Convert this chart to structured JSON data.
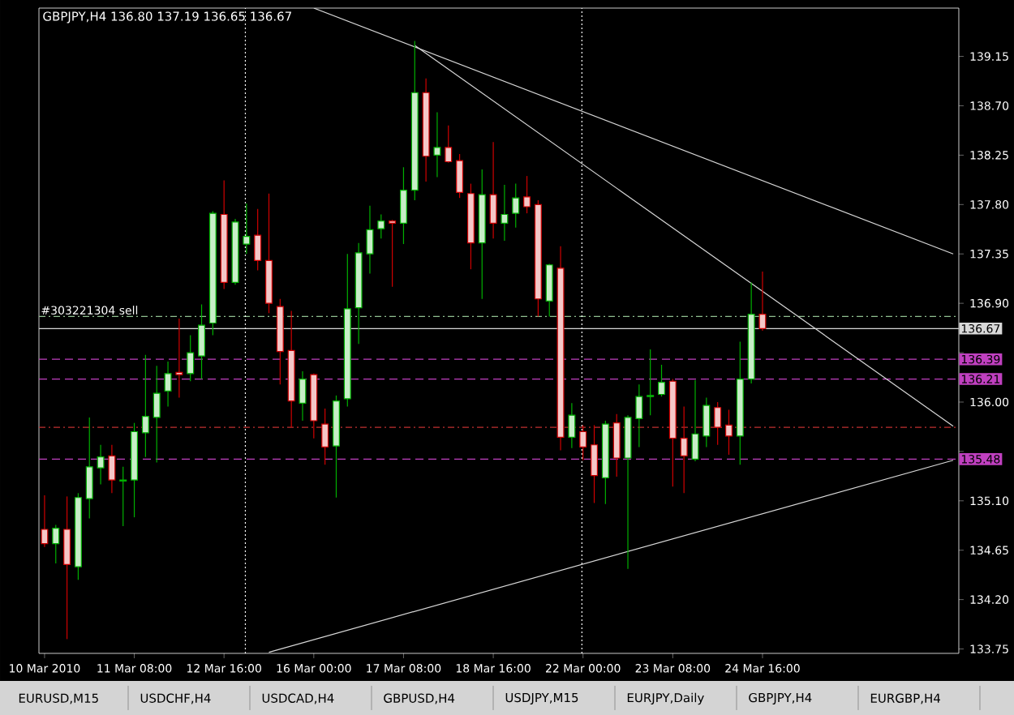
{
  "chart_data": {
    "type": "candlestick",
    "title": "GBPJPY,H4  136.80 137.19 136.65 136.67",
    "categories": [
      "10 Mar 2010",
      null,
      null,
      null,
      null,
      null,
      null,
      null,
      "11 Mar 08:00",
      null,
      null,
      null,
      null,
      null,
      null,
      null,
      "12 Mar 16:00",
      null,
      null,
      null,
      null,
      null,
      null,
      null,
      "16 Mar 00:00",
      null,
      null,
      null,
      null,
      null,
      null,
      null,
      "17 Mar 08:00",
      null,
      null,
      null,
      null,
      null,
      null,
      null,
      "18 Mar 16:00",
      null,
      null,
      null,
      null,
      null,
      null,
      null,
      "22 Mar 00:00",
      null,
      null,
      null,
      null,
      null,
      null,
      null,
      "23 Mar 08:00",
      null,
      null,
      null,
      null,
      null,
      null,
      null,
      "24 Mar 16:00",
      null,
      null,
      null,
      null,
      null,
      null,
      null,
      null,
      null,
      null,
      null,
      null,
      null,
      null,
      null,
      null,
      null
    ],
    "ohlc": [
      [
        134.84,
        135.15,
        134.68,
        134.71
      ],
      [
        134.71,
        134.88,
        134.53,
        134.85
      ],
      [
        134.84,
        135.14,
        133.84,
        134.52
      ],
      [
        134.5,
        135.17,
        134.38,
        135.13
      ],
      [
        135.12,
        135.86,
        134.94,
        135.41
      ],
      [
        135.4,
        135.61,
        135.25,
        135.5
      ],
      [
        135.51,
        135.61,
        135.17,
        135.29
      ],
      [
        135.28,
        135.41,
        134.87,
        135.29
      ],
      [
        135.29,
        135.81,
        134.95,
        135.73
      ],
      [
        135.72,
        136.43,
        135.5,
        135.87
      ],
      [
        135.86,
        136.33,
        135.45,
        136.08
      ],
      [
        136.1,
        136.37,
        135.96,
        136.26
      ],
      [
        136.27,
        136.76,
        136.04,
        136.25
      ],
      [
        136.26,
        136.61,
        136.19,
        136.45
      ],
      [
        136.42,
        136.89,
        136.21,
        136.7
      ],
      [
        136.72,
        137.74,
        136.61,
        137.72
      ],
      [
        137.71,
        138.02,
        137.03,
        137.09
      ],
      [
        137.09,
        137.67,
        137.07,
        137.64
      ],
      [
        137.44,
        137.81,
        137.35,
        137.51
      ],
      [
        137.52,
        137.76,
        137.2,
        137.29
      ],
      [
        137.29,
        137.9,
        136.81,
        136.9
      ],
      [
        136.87,
        136.94,
        136.16,
        136.46
      ],
      [
        136.47,
        136.83,
        135.77,
        136.01
      ],
      [
        135.99,
        136.28,
        135.83,
        136.21
      ],
      [
        136.25,
        136.26,
        135.67,
        135.83
      ],
      [
        135.8,
        135.94,
        135.43,
        135.59
      ],
      [
        135.6,
        136.06,
        135.13,
        136.01
      ],
      [
        136.03,
        137.35,
        135.96,
        136.85
      ],
      [
        136.86,
        137.45,
        136.53,
        137.36
      ],
      [
        137.35,
        137.79,
        137.17,
        137.57
      ],
      [
        137.58,
        137.71,
        137.49,
        137.65
      ],
      [
        137.65,
        137.66,
        137.05,
        137.63
      ],
      [
        137.63,
        138.14,
        137.44,
        137.93
      ],
      [
        137.93,
        139.29,
        137.84,
        138.82
      ],
      [
        138.82,
        138.95,
        138.01,
        138.24
      ],
      [
        138.25,
        138.64,
        138.05,
        138.32
      ],
      [
        138.32,
        138.52,
        138.18,
        138.19
      ],
      [
        138.2,
        138.26,
        137.86,
        137.91
      ],
      [
        137.9,
        137.99,
        137.21,
        137.45
      ],
      [
        137.45,
        138.12,
        136.94,
        137.89
      ],
      [
        137.89,
        138.37,
        137.49,
        137.63
      ],
      [
        137.63,
        137.98,
        137.47,
        137.71
      ],
      [
        137.72,
        137.99,
        137.59,
        137.86
      ],
      [
        137.87,
        138.06,
        137.72,
        137.78
      ],
      [
        137.8,
        137.84,
        136.78,
        136.94
      ],
      [
        136.92,
        137.26,
        136.78,
        137.25
      ],
      [
        137.22,
        137.42,
        135.56,
        135.68
      ],
      [
        135.68,
        135.99,
        135.58,
        135.88
      ],
      [
        135.73,
        135.79,
        135.47,
        135.59
      ],
      [
        135.61,
        135.79,
        135.08,
        135.33
      ],
      [
        135.31,
        135.83,
        135.07,
        135.8
      ],
      [
        135.81,
        135.89,
        135.32,
        135.49
      ],
      [
        135.49,
        135.88,
        134.48,
        135.86
      ],
      [
        135.85,
        136.16,
        135.59,
        136.05
      ],
      [
        136.05,
        136.48,
        135.88,
        136.06
      ],
      [
        136.07,
        136.34,
        136.05,
        136.18
      ],
      [
        136.19,
        136.21,
        135.23,
        135.67
      ],
      [
        135.67,
        135.96,
        135.17,
        135.51
      ],
      [
        135.48,
        136.2,
        135.46,
        135.71
      ],
      [
        135.69,
        136.04,
        135.59,
        135.97
      ],
      [
        135.95,
        136.0,
        135.61,
        135.77
      ],
      [
        135.79,
        135.93,
        135.52,
        135.69
      ],
      [
        135.69,
        136.55,
        135.43,
        136.21
      ],
      [
        136.21,
        137.09,
        136.17,
        136.8
      ],
      [
        136.8,
        137.19,
        136.65,
        136.67
      ],
      null,
      null,
      null,
      null,
      null,
      null,
      null,
      null,
      null,
      null,
      null,
      null,
      null,
      null,
      null,
      null,
      null
    ],
    "colors": [
      "#d00000",
      "#00b000",
      "#d00000",
      "#00b000",
      "#00b000",
      "#00b000",
      "#d00000",
      "#00b000",
      "#00b000",
      "#00b000",
      "#00b000",
      "#00b000",
      "#d00000",
      "#00b000",
      "#00b000",
      "#00b000",
      "#d00000",
      "#00b000",
      "#00b000",
      "#d00000",
      "#d00000",
      "#d00000",
      "#d00000",
      "#00b000",
      "#d00000",
      "#d00000",
      "#00b000",
      "#00b000",
      "#00b000",
      "#00b000",
      "#00b000",
      "#d00000",
      "#00b000",
      "#00b000",
      "#d00000",
      "#00b000",
      "#d00000",
      "#d00000",
      "#d00000",
      "#00b000",
      "#d00000",
      "#00b000",
      "#00b000",
      "#d00000",
      "#d00000",
      "#00b000",
      "#d00000",
      "#00b000",
      "#d00000",
      "#d00000",
      "#00b000",
      "#d00000",
      "#00b000",
      "#00b000",
      "#00b000",
      "#00b000",
      "#d00000",
      "#d00000",
      "#00b000",
      "#00b000",
      "#d00000",
      "#d00000",
      "#00b000",
      "#00b000",
      "#d00000",
      null,
      null,
      null,
      null,
      null,
      null,
      null,
      null,
      null,
      null,
      null,
      null,
      null,
      null,
      null,
      null,
      null
    ],
    "series": [
      {
        "type": "line",
        "color": "#d8d8d8",
        "values": [
          null,
          null,
          null,
          null,
          null,
          null,
          null,
          null,
          null,
          null,
          null,
          null,
          null,
          null,
          null,
          null,
          null,
          null,
          null,
          null,
          null,
          null,
          null,
          null,
          139.59,
          null,
          null,
          null,
          null,
          null,
          null,
          null,
          null,
          null,
          null,
          null,
          null,
          null,
          null,
          null,
          null,
          null,
          null,
          null,
          null,
          null,
          null,
          null,
          null,
          null,
          null,
          null,
          null,
          null,
          null,
          null,
          null,
          null,
          null,
          null,
          null,
          null,
          null,
          null,
          null,
          null,
          null,
          null,
          null,
          null,
          null,
          null,
          null,
          null,
          null,
          null,
          null,
          null,
          null,
          null,
          null,
          137.35
        ]
      },
      {
        "type": "line",
        "color": "#d8d8d8",
        "values": [
          null,
          null,
          null,
          null,
          null,
          null,
          null,
          null,
          null,
          null,
          null,
          null,
          null,
          null,
          null,
          null,
          null,
          null,
          null,
          null,
          null,
          null,
          null,
          null,
          null,
          null,
          null,
          null,
          null,
          null,
          null,
          null,
          null,
          139.25,
          null,
          null,
          null,
          null,
          null,
          null,
          null,
          null,
          null,
          null,
          null,
          null,
          null,
          null,
          null,
          null,
          null,
          null,
          null,
          null,
          null,
          null,
          null,
          null,
          null,
          null,
          null,
          null,
          null,
          null,
          null,
          null,
          null,
          null,
          null,
          null,
          null,
          null,
          null,
          null,
          null,
          null,
          null,
          null,
          null,
          null,
          null,
          135.78
        ]
      },
      {
        "type": "line",
        "color": "#d8d8d8",
        "values": [
          null,
          null,
          null,
          null,
          null,
          null,
          null,
          null,
          null,
          null,
          null,
          null,
          null,
          null,
          null,
          null,
          null,
          null,
          null,
          null,
          133.72,
          null,
          null,
          null,
          null,
          null,
          null,
          null,
          null,
          null,
          null,
          null,
          null,
          null,
          null,
          null,
          null,
          null,
          null,
          null,
          null,
          null,
          null,
          null,
          null,
          null,
          null,
          null,
          null,
          null,
          null,
          null,
          null,
          null,
          null,
          null,
          null,
          null,
          null,
          null,
          null,
          null,
          null,
          null,
          null,
          null,
          null,
          null,
          null,
          null,
          null,
          null,
          null,
          null,
          null,
          null,
          null,
          null,
          null,
          null,
          null,
          135.47
        ]
      }
    ],
    "ylim": [
      133.71,
      139.59
    ],
    "yticks": [
      133.75,
      {
        "value": 134.2,
        "label": "134.20"
      },
      134.65,
      {
        "value": 135.1,
        "label": "135.10"
      },
      {
        "value": 135.55,
        "label": null
      },
      {
        "value": 136.0,
        "label": "136.00"
      },
      {
        "value": 136.45,
        "label": null
      },
      {
        "value": 136.9,
        "label": "136.90"
      },
      137.35,
      {
        "value": 137.8,
        "label": "137.80"
      },
      138.25,
      {
        "value": 138.7,
        "label": "138.70"
      },
      139.15
    ],
    "ref_lines": [
      {
        "axis": "y",
        "value": 136.78,
        "label": "#303221304 sell",
        "color": "#90c090",
        "line_style": "dashdot"
      },
      {
        "axis": "y",
        "value": 136.67,
        "label": "136.67",
        "color": "#d8d8d8",
        "line_style": "solid"
      },
      {
        "axis": "y",
        "value": 136.39,
        "label": "136.39",
        "color": "#c040c0",
        "line_style": "dashed"
      },
      {
        "axis": "y",
        "value": 136.21,
        "label": "136.21",
        "color": "#c040c0",
        "line_style": "dashed"
      },
      {
        "axis": "y",
        "value": 135.77,
        "color": "#c03030",
        "line_style": "dashdot"
      },
      {
        "axis": "y",
        "value": 135.48,
        "label": "135.48",
        "color": "#c040c0",
        "line_style": "dashed"
      }
    ],
    "annotations": [
      "EURUSD,M15",
      "USDCHF,H4",
      "USDCAD,H4",
      "GBPUSD,H4",
      "USDJPY,M15",
      "EURJPY,Daily",
      "GBPJPY,H4",
      "EURGBP,H4"
    ]
  }
}
